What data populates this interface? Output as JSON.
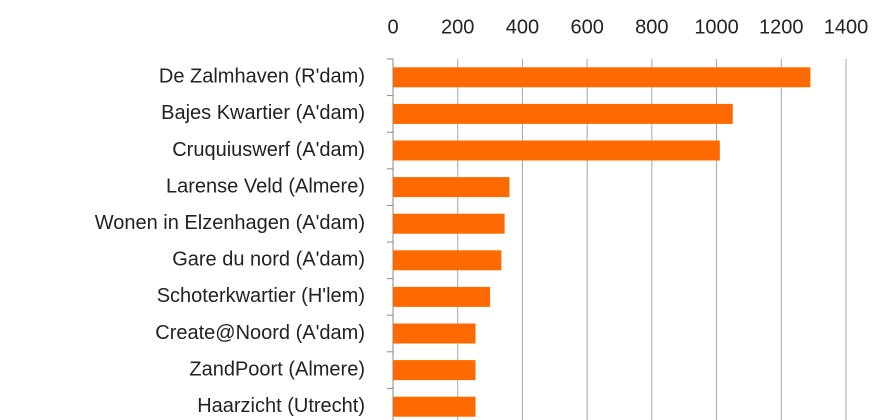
{
  "chart_data": {
    "type": "bar",
    "orientation": "horizontal",
    "categories": [
      "De Zalmhaven (R'dam)",
      "Bajes Kwartier (A'dam)",
      "Cruquiuswerf (A'dam)",
      "Larense Veld (Almere)",
      "Wonen in Elzenhagen (A'dam)",
      "Gare du nord (A'dam)",
      "Schoterkwartier (H'lem)",
      "Create@Noord (A'dam)",
      "ZandPoort (Almere)",
      "Haarzicht (Utrecht)"
    ],
    "values": [
      1290,
      1050,
      1010,
      360,
      345,
      335,
      300,
      255,
      255,
      255
    ],
    "color": "#ff6a00",
    "xlim": [
      0,
      1400
    ],
    "xticks": [
      0,
      200,
      400,
      600,
      800,
      1000,
      1200,
      1400
    ],
    "grid": true
  }
}
